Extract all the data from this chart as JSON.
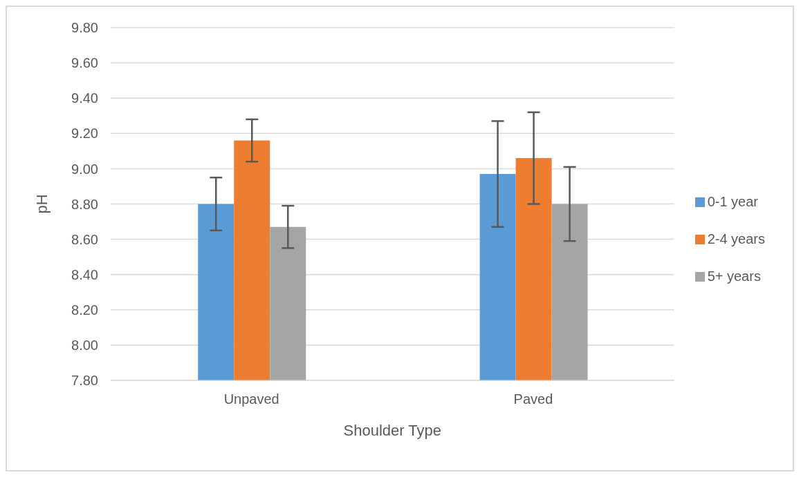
{
  "chart_data": {
    "type": "bar",
    "xlabel": "Shoulder Type",
    "ylabel": "pH",
    "categories": [
      "Unpaved",
      "Paved"
    ],
    "series": [
      {
        "name": "0-1 year",
        "color": "#5b9bd5",
        "values": [
          8.8,
          8.97
        ],
        "errors": [
          0.15,
          0.3
        ]
      },
      {
        "name": "2-4 years",
        "color": "#ed7d31",
        "values": [
          9.16,
          9.06
        ],
        "errors": [
          0.12,
          0.26
        ]
      },
      {
        "name": "5+ years",
        "color": "#a5a5a5",
        "values": [
          8.67,
          8.8
        ],
        "errors": [
          0.12,
          0.21
        ]
      }
    ],
    "ylim": [
      7.8,
      9.8
    ],
    "yticks": [
      {
        "value": 7.8,
        "label": "7.80"
      },
      {
        "value": 8.0,
        "label": "8.00"
      },
      {
        "value": 8.2,
        "label": "8.20"
      },
      {
        "value": 8.4,
        "label": "8.40"
      },
      {
        "value": 8.6,
        "label": "8.60"
      },
      {
        "value": 8.8,
        "label": "8.80"
      },
      {
        "value": 9.0,
        "label": "9.00"
      },
      {
        "value": 9.2,
        "label": "9.20"
      },
      {
        "value": 9.4,
        "label": "9.40"
      },
      {
        "value": 9.6,
        "label": "9.60"
      },
      {
        "value": 9.8,
        "label": "9.80"
      }
    ],
    "grid": "y",
    "legend": "right"
  }
}
